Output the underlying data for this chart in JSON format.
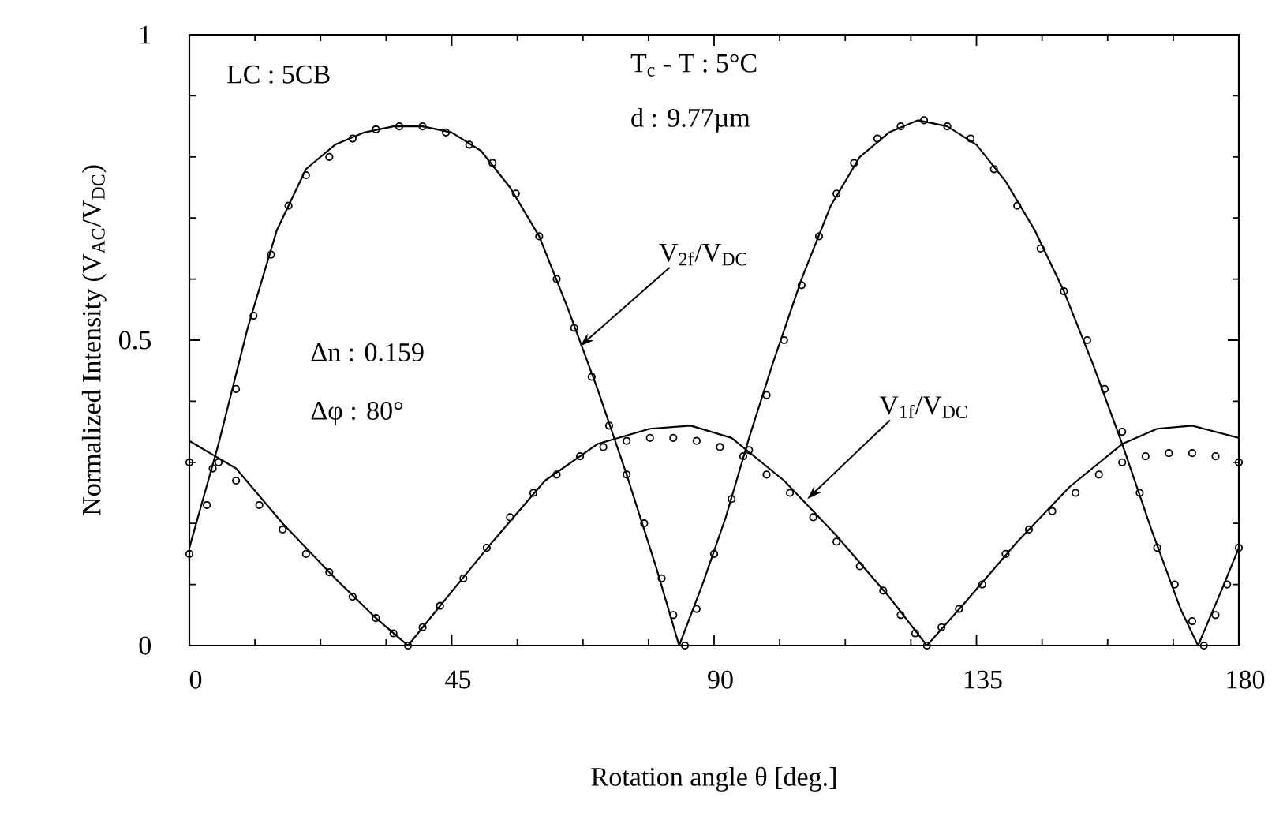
{
  "chart_data": {
    "type": "line",
    "xlabel": "Rotation  angle θ [deg.]",
    "ylabel": "Normalized Intensity (V$_{AC}$/V$_{DC}$)",
    "xlim": [
      0,
      180
    ],
    "ylim": [
      0,
      1
    ],
    "xticks": [
      0,
      45,
      90,
      135,
      180
    ],
    "yticks": [
      0,
      0.5,
      1
    ],
    "series": [
      {
        "type": "scatter",
        "marker": "circle",
        "color": "#000000",
        "x": [
          0,
          3,
          5,
          8,
          11,
          14,
          17,
          20,
          24,
          28,
          32,
          36,
          40,
          44,
          48,
          52,
          56,
          60,
          63,
          66,
          69,
          72,
          75,
          78,
          81,
          83,
          85,
          87,
          90,
          93,
          96,
          99,
          102,
          105,
          108,
          111,
          114,
          118,
          122,
          126,
          130,
          134,
          138,
          142,
          146,
          150,
          154,
          157,
          160,
          163,
          166,
          169,
          172,
          174,
          176,
          178,
          180
        ],
        "values": [
          0.15,
          0.23,
          0.3,
          0.42,
          0.54,
          0.64,
          0.72,
          0.77,
          0.8,
          0.83,
          0.845,
          0.85,
          0.85,
          0.84,
          0.82,
          0.79,
          0.74,
          0.67,
          0.6,
          0.52,
          0.44,
          0.36,
          0.28,
          0.2,
          0.11,
          0.05,
          0.0,
          0.06,
          0.15,
          0.24,
          0.32,
          0.41,
          0.5,
          0.59,
          0.67,
          0.74,
          0.79,
          0.83,
          0.85,
          0.86,
          0.85,
          0.83,
          0.78,
          0.72,
          0.65,
          0.58,
          0.5,
          0.42,
          0.35,
          0.25,
          0.16,
          0.1,
          0.04,
          0.0,
          0.05,
          0.1,
          0.16
        ]
      },
      {
        "color": "#000000",
        "x": [
          0,
          5,
          10,
          15,
          20,
          25,
          30,
          35,
          40,
          45,
          50,
          55,
          60,
          65,
          70,
          75,
          80,
          84,
          88,
          92,
          96,
          100,
          105,
          110,
          115,
          120,
          125,
          130,
          135,
          140,
          145,
          150,
          155,
          160,
          165,
          170,
          173,
          177,
          180
        ],
        "values": [
          0.16,
          0.33,
          0.52,
          0.68,
          0.78,
          0.82,
          0.84,
          0.85,
          0.85,
          0.84,
          0.81,
          0.75,
          0.67,
          0.55,
          0.42,
          0.28,
          0.13,
          0.0,
          0.1,
          0.21,
          0.34,
          0.46,
          0.6,
          0.72,
          0.8,
          0.84,
          0.86,
          0.85,
          0.82,
          0.76,
          0.68,
          0.58,
          0.46,
          0.33,
          0.19,
          0.06,
          0.0,
          0.09,
          0.16
        ]
      },
      {
        "type": "scatter",
        "marker": "circle",
        "color": "#000000",
        "x": [
          0,
          4,
          8,
          12,
          16,
          20,
          24,
          28,
          32,
          35,
          37.5,
          40,
          43,
          47,
          51,
          55,
          59,
          63,
          67,
          71,
          75,
          79,
          83,
          87,
          91,
          95,
          99,
          103,
          107,
          111,
          115,
          119,
          122,
          124.5,
          126.5,
          129,
          132,
          136,
          140,
          144,
          148,
          152,
          156,
          160,
          164,
          168,
          172,
          176,
          180
        ],
        "values": [
          0.3,
          0.29,
          0.27,
          0.23,
          0.19,
          0.15,
          0.12,
          0.08,
          0.045,
          0.02,
          0.0,
          0.03,
          0.065,
          0.11,
          0.16,
          0.21,
          0.25,
          0.28,
          0.31,
          0.325,
          0.335,
          0.34,
          0.34,
          0.335,
          0.325,
          0.31,
          0.28,
          0.25,
          0.21,
          0.17,
          0.13,
          0.09,
          0.05,
          0.02,
          0.0,
          0.03,
          0.06,
          0.1,
          0.15,
          0.19,
          0.22,
          0.25,
          0.28,
          0.3,
          0.31,
          0.315,
          0.315,
          0.31,
          0.3
        ]
      },
      {
        "color": "#000000",
        "x": [
          0,
          8,
          16,
          25,
          32,
          37.5,
          43,
          52,
          61,
          70,
          79,
          86,
          93,
          102,
          111,
          120,
          126.5,
          133,
          142,
          151,
          160,
          166,
          172,
          180
        ],
        "values": [
          0.335,
          0.29,
          0.2,
          0.11,
          0.045,
          0.0,
          0.065,
          0.17,
          0.27,
          0.33,
          0.355,
          0.36,
          0.34,
          0.27,
          0.18,
          0.08,
          0.0,
          0.07,
          0.17,
          0.26,
          0.33,
          0.355,
          0.36,
          0.34
        ]
      }
    ],
    "annotations": [
      "LC : 5CB",
      "T$_{c}$ - T : 5°C",
      "d : 9.77µm",
      "Δn : 0.159",
      "Δφ : 80°",
      {
        "text": "V$_{2f}$/V$_{DC}$",
        "x": 67,
        "y": 0.49
      },
      {
        "text": "V$_{1f}$/V$_{DC}$",
        "x": 106,
        "y": 0.24
      }
    ]
  }
}
